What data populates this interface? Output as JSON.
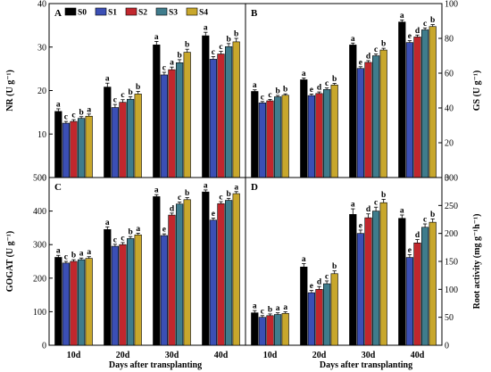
{
  "figure": {
    "x_title": "Days after transplanting",
    "colors": {
      "S0": "#000000",
      "S1": "#3b4fb5",
      "S2": "#c1272d",
      "S3": "#3f7c8c",
      "S4": "#c8a72c"
    }
  },
  "chart_data": [
    {
      "panel": "A",
      "type": "bar",
      "ylabel": "NR (U g⁻¹)",
      "ylim": [
        0,
        40
      ],
      "yticks": [
        "0",
        "10",
        "20",
        "30",
        "40"
      ],
      "categories": [
        "10d",
        "20d",
        "30d",
        "40d"
      ],
      "legend": {
        "placement": "top"
      },
      "series": [
        {
          "name": "S0",
          "values": [
            15.2,
            20.8,
            30.5,
            32.6
          ],
          "err": [
            0.6,
            0.9,
            0.8,
            0.8
          ],
          "letters": [
            "a",
            "a",
            "a",
            "a"
          ]
        },
        {
          "name": "S1",
          "values": [
            12.5,
            16.1,
            23.6,
            27.2
          ],
          "err": [
            0.4,
            0.7,
            0.6,
            0.6
          ],
          "letters": [
            "c",
            "c",
            "c",
            "c"
          ]
        },
        {
          "name": "S2",
          "values": [
            12.9,
            17.3,
            24.8,
            28.4
          ],
          "err": [
            0.4,
            0.6,
            0.6,
            0.6
          ],
          "letters": [
            "c",
            "c",
            "a",
            "c"
          ]
        },
        {
          "name": "S3",
          "values": [
            13.6,
            18.0,
            26.4,
            30.1
          ],
          "err": [
            0.4,
            0.6,
            0.7,
            0.7
          ],
          "letters": [
            "b",
            "b",
            "b",
            "b"
          ]
        },
        {
          "name": "S4",
          "values": [
            14.1,
            19.2,
            28.8,
            31.2
          ],
          "err": [
            0.5,
            0.6,
            0.7,
            0.8
          ],
          "letters": [
            "a",
            "b",
            "b",
            "b"
          ]
        }
      ]
    },
    {
      "panel": "B",
      "type": "bar",
      "ylabel": "GS (U g⁻¹)",
      "ylim": [
        0,
        100
      ],
      "yticks": [
        "0",
        "20",
        "40",
        "60",
        "80",
        "100"
      ],
      "categories": [
        "10d",
        "20d",
        "30d",
        "40d"
      ],
      "series": [
        {
          "name": "S0",
          "values": [
            49.5,
            56.2,
            76.2,
            89.4
          ],
          "err": [
            0.9,
            1.0,
            1.1,
            1.2
          ],
          "letters": [
            "a",
            "a",
            "a",
            "a"
          ]
        },
        {
          "name": "S1",
          "values": [
            42.9,
            47.1,
            62.7,
            77.6
          ],
          "err": [
            0.8,
            0.9,
            1.0,
            1.1
          ],
          "letters": [
            "c",
            "e",
            "e",
            "e"
          ]
        },
        {
          "name": "S2",
          "values": [
            44.1,
            48.3,
            66.2,
            80.8
          ],
          "err": [
            0.8,
            0.9,
            1.0,
            1.1
          ],
          "letters": [
            "c",
            "d",
            "d",
            "d"
          ]
        },
        {
          "name": "S3",
          "values": [
            46.4,
            50.6,
            70.0,
            84.9
          ],
          "err": [
            0.8,
            0.9,
            1.0,
            1.1
          ],
          "letters": [
            "b",
            "c",
            "c",
            "c"
          ]
        },
        {
          "name": "S4",
          "values": [
            47.3,
            53.2,
            73.3,
            86.8
          ],
          "err": [
            0.8,
            0.9,
            1.0,
            1.1
          ],
          "letters": [
            "b",
            "b",
            "b",
            "b"
          ]
        }
      ]
    },
    {
      "panel": "C",
      "type": "bar",
      "ylabel": "GOGAT (U g⁻¹)",
      "ylim": [
        0,
        500
      ],
      "yticks": [
        "0",
        "100",
        "200",
        "300",
        "400",
        "500"
      ],
      "categories": [
        "10d",
        "20d",
        "30d",
        "40d"
      ],
      "series": [
        {
          "name": "S0",
          "values": [
            262,
            345,
            443,
            457
          ],
          "err": [
            6,
            8,
            6,
            6
          ],
          "letters": [
            "a",
            "a",
            "a",
            "a"
          ]
        },
        {
          "name": "S1",
          "values": [
            245,
            295,
            327,
            373
          ],
          "err": [
            5,
            6,
            5,
            6
          ],
          "letters": [
            "c",
            "c",
            "e",
            "e"
          ]
        },
        {
          "name": "S2",
          "values": [
            250,
            300,
            388,
            422
          ],
          "err": [
            5,
            6,
            6,
            6
          ],
          "letters": [
            "b",
            "c",
            "d",
            "c"
          ]
        },
        {
          "name": "S3",
          "values": [
            255,
            318,
            421,
            432
          ],
          "err": [
            5,
            6,
            6,
            6
          ],
          "letters": [
            "a",
            "b",
            "c",
            "b"
          ]
        },
        {
          "name": "S4",
          "values": [
            259,
            329,
            434,
            452
          ],
          "err": [
            5,
            5,
            6,
            6
          ],
          "letters": [
            "a",
            "a",
            "b",
            "a"
          ]
        }
      ]
    },
    {
      "panel": "D",
      "type": "bar",
      "ylabel": "Root activity (mg g⁻¹h⁻¹)",
      "ylim": [
        0,
        300
      ],
      "yticks": [
        "0",
        "50",
        "100",
        "150",
        "200",
        "250",
        "300"
      ],
      "categories": [
        "10d",
        "20d",
        "30d",
        "40d"
      ],
      "series": [
        {
          "name": "S0",
          "values": [
            58,
            140,
            234,
            227
          ],
          "err": [
            4,
            6,
            10,
            6
          ],
          "letters": [
            "a",
            "a",
            "a",
            "a"
          ]
        },
        {
          "name": "S1",
          "values": [
            50,
            94,
            200,
            157
          ],
          "err": [
            3,
            4,
            6,
            5
          ],
          "letters": [
            "c",
            "e",
            "e",
            "e"
          ]
        },
        {
          "name": "S2",
          "values": [
            53,
            100,
            228,
            183
          ],
          "err": [
            3,
            5,
            7,
            6
          ],
          "letters": [
            "b",
            "d",
            "d",
            "d"
          ]
        },
        {
          "name": "S3",
          "values": [
            55,
            110,
            240,
            211
          ],
          "err": [
            3,
            5,
            7,
            6
          ],
          "letters": [
            "a",
            "c",
            "c",
            "c"
          ]
        },
        {
          "name": "S4",
          "values": [
            57,
            128,
            255,
            220
          ],
          "err": [
            3,
            5,
            6,
            6
          ],
          "letters": [
            "a",
            "b",
            "b",
            "b"
          ]
        }
      ]
    }
  ]
}
